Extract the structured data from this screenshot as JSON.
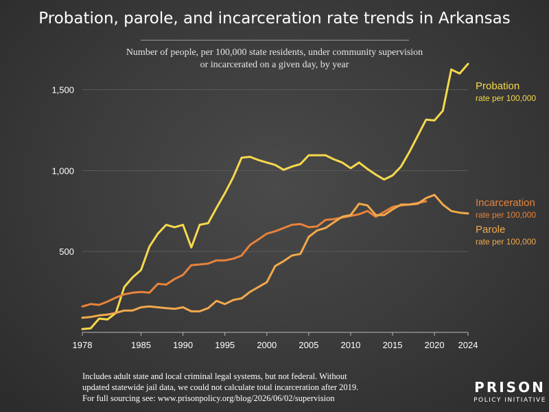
{
  "chart_data": {
    "type": "line",
    "title": "Probation, parole, and incarceration rate trends in Arkansas",
    "subtitle": "Number of people, per 100,000 state residents, under community supervision or incarcerated on a given day, by year",
    "xlim": [
      1978,
      2024
    ],
    "ylim": [
      0,
      1800
    ],
    "x_ticks": [
      1978,
      1985,
      1990,
      1995,
      2000,
      2005,
      2010,
      2015,
      2020,
      2024
    ],
    "y_ticks": [
      500,
      1000,
      1500
    ],
    "y_tick_labels": [
      "500",
      "1,000",
      "1,500"
    ],
    "grid": "horizontal",
    "series": [
      {
        "name": "Probation",
        "sublabel": "rate per 100,000",
        "color": "#f7d94c",
        "x": [
          1978,
          1979,
          1980,
          1981,
          1982,
          1983,
          1984,
          1985,
          1986,
          1987,
          1988,
          1989,
          1990,
          1991,
          1992,
          1993,
          1994,
          1995,
          1996,
          1997,
          1998,
          1999,
          2000,
          2001,
          2002,
          2003,
          2004,
          2005,
          2006,
          2007,
          2008,
          2009,
          2010,
          2011,
          2012,
          2013,
          2014,
          2015,
          2016,
          2017,
          2018,
          2019,
          2020,
          2021,
          2022,
          2023,
          2024
        ],
        "values": [
          20,
          25,
          85,
          80,
          120,
          280,
          340,
          385,
          530,
          610,
          665,
          650,
          665,
          525,
          665,
          675,
          770,
          860,
          960,
          1080,
          1085,
          1065,
          1050,
          1035,
          1005,
          1025,
          1040,
          1095,
          1095,
          1095,
          1070,
          1050,
          1015,
          1050,
          1010,
          975,
          945,
          970,
          1025,
          1115,
          1215,
          1315,
          1310,
          1370,
          1625,
          1600,
          1660
        ]
      },
      {
        "name": "Incarceration",
        "sublabel": "rate per 100,000",
        "color": "#e8833a",
        "x": [
          1978,
          1979,
          1980,
          1981,
          1982,
          1983,
          1984,
          1985,
          1986,
          1987,
          1988,
          1989,
          1990,
          1991,
          1992,
          1993,
          1994,
          1995,
          1996,
          1997,
          1998,
          1999,
          2000,
          2001,
          2002,
          2003,
          2004,
          2005,
          2006,
          2007,
          2008,
          2009,
          2010,
          2011,
          2012,
          2013,
          2014,
          2015,
          2016,
          2017,
          2018,
          2019
        ],
        "values": [
          160,
          175,
          170,
          190,
          215,
          235,
          245,
          250,
          245,
          300,
          295,
          330,
          355,
          415,
          420,
          425,
          445,
          445,
          455,
          475,
          540,
          575,
          610,
          625,
          645,
          665,
          670,
          650,
          655,
          695,
          700,
          710,
          720,
          730,
          750,
          715,
          745,
          775,
          785,
          790,
          800,
          810
        ]
      },
      {
        "name": "Parole",
        "sublabel": "rate per 100,000",
        "color": "#f2a94c",
        "x": [
          1978,
          1979,
          1980,
          1981,
          1982,
          1983,
          1984,
          1985,
          1986,
          1987,
          1988,
          1989,
          1990,
          1991,
          1992,
          1993,
          1994,
          1995,
          1996,
          1997,
          1998,
          1999,
          2000,
          2001,
          2002,
          2003,
          2004,
          2005,
          2006,
          2007,
          2008,
          2009,
          2010,
          2011,
          2012,
          2013,
          2014,
          2015,
          2016,
          2017,
          2018,
          2019,
          2020,
          2021,
          2022,
          2023,
          2024
        ],
        "values": [
          90,
          95,
          105,
          110,
          120,
          135,
          135,
          155,
          160,
          155,
          150,
          145,
          155,
          130,
          130,
          150,
          195,
          175,
          200,
          210,
          250,
          280,
          310,
          410,
          440,
          475,
          485,
          590,
          630,
          645,
          680,
          715,
          725,
          795,
          785,
          725,
          725,
          760,
          790,
          790,
          795,
          830,
          850,
          790,
          750,
          740,
          735
        ]
      }
    ]
  },
  "labels": {
    "probation": {
      "name": "Probation",
      "sub": "rate per 100,000"
    },
    "incarceration": {
      "name": "Incarceration",
      "sub": "rate per 100,000"
    },
    "parole": {
      "name": "Parole",
      "sub": "rate per 100,000"
    }
  },
  "footnote": {
    "line1": "Includes adult state and local criminal legal systems, but not federal. Without",
    "line2": "updated statewide jail data, we could not calculate total incarceration after 2019.",
    "line3": "For full sourcing see: www.prisonpolicy.org/blog/2026/06/02/supervision"
  },
  "brand": {
    "line1": "PRISON",
    "line2": "POLICY INITIATIVE"
  }
}
